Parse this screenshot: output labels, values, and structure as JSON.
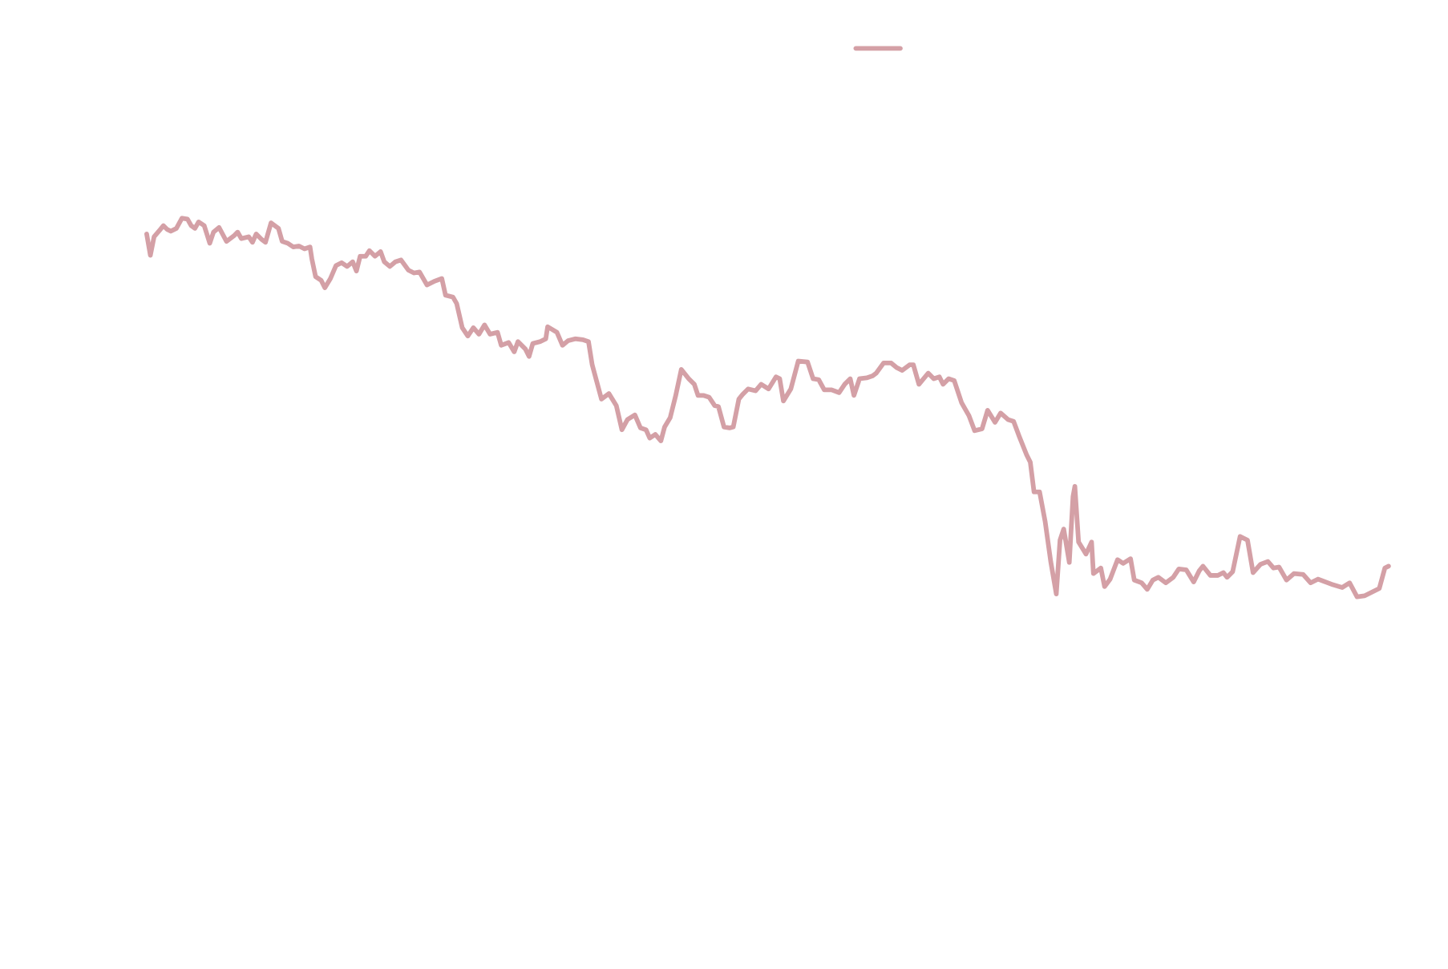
{
  "chart_data": {
    "type": "line",
    "xlim": [
      0,
      1338
    ],
    "ylim": [
      0,
      100
    ],
    "x": [
      0,
      4,
      8,
      14,
      18,
      22,
      26,
      32,
      38,
      44,
      48,
      52,
      56,
      62,
      68,
      72,
      78,
      86,
      94,
      98,
      102,
      110,
      114,
      118,
      124,
      128,
      134,
      142,
      146,
      152,
      158,
      164,
      170,
      176,
      178,
      182,
      188,
      192,
      198,
      204,
      210,
      216,
      222,
      226,
      230,
      236,
      240,
      246,
      252,
      256,
      262,
      268,
      274,
      282,
      288,
      294,
      302,
      310,
      318,
      322,
      330,
      334,
      340,
      346,
      352,
      358,
      364,
      370,
      378,
      382,
      390,
      396,
      400,
      408,
      412,
      416,
      424,
      430,
      432,
      442,
      448,
      454,
      462,
      470,
      476,
      480,
      490,
      498,
      506,
      512,
      518,
      526,
      532,
      538,
      542,
      548,
      554,
      558,
      564,
      570,
      576,
      584,
      590,
      594,
      600,
      606,
      612,
      616,
      622,
      628,
      632,
      638,
      642,
      648,
      656,
      662,
      670,
      678,
      682,
      686,
      694,
      702,
      712,
      718,
      724,
      730,
      738,
      746,
      752,
      758,
      762,
      768,
      776,
      782,
      786,
      794,
      802,
      808,
      814,
      822,
      826,
      832,
      842,
      848,
      854,
      858,
      864,
      870,
      878,
      886,
      892,
      900,
      906,
      914,
      920,
      928,
      934,
      940,
      948,
      952,
      956,
      962,
      968,
      974,
      980,
      984,
      988,
      994,
      998,
      1000,
      1004,
      1012,
      1018,
      1020,
      1028,
      1032,
      1038,
      1046,
      1052,
      1060,
      1064,
      1072,
      1078,
      1084,
      1090,
      1098,
      1106,
      1112,
      1120,
      1128,
      1134,
      1138,
      1146,
      1154,
      1160,
      1164,
      1170,
      1178,
      1186,
      1192,
      1200,
      1208,
      1214,
      1220,
      1228,
      1236,
      1246,
      1254,
      1262,
      1270,
      1278,
      1288,
      1296,
      1304,
      1312,
      1320,
      1328,
      1334,
      1338
    ],
    "series": [
      {
        "color": "#d4a0a6",
        "values": [
          74.8,
          72.5,
          74.5,
          75.2,
          75.7,
          75.3,
          75.1,
          75.4,
          76.5,
          76.4,
          75.7,
          75.4,
          76.1,
          75.7,
          73.8,
          75,
          75.5,
          74,
          74.6,
          75,
          74.3,
          74.5,
          73.9,
          74.8,
          74.2,
          73.9,
          76,
          75.4,
          74,
          73.8,
          73.4,
          73.5,
          73.2,
          73.4,
          72.1,
          70.2,
          69.8,
          69,
          70,
          71.4,
          71.7,
          71.3,
          71.8,
          70.8,
          72.4,
          72.4,
          73,
          72.4,
          72.9,
          71.8,
          71.3,
          71.8,
          72,
          70.9,
          70.6,
          70.7,
          69.3,
          69.7,
          70,
          68.2,
          68,
          67.3,
          64.7,
          63.8,
          64.7,
          64,
          65,
          64,
          64.2,
          62.8,
          63.1,
          62.1,
          63.2,
          62.4,
          61.6,
          63,
          63.2,
          63.5,
          64.8,
          64.2,
          62.8,
          63.3,
          63.5,
          63.4,
          63.2,
          60.7,
          57,
          57.6,
          56.3,
          53.7,
          54.8,
          55.3,
          53.9,
          53.7,
          52.8,
          53.2,
          52.5,
          54,
          55,
          57.4,
          60.2,
          59.2,
          58.6,
          57.4,
          57.4,
          57.2,
          56.3,
          56.2,
          54,
          53.9,
          54,
          57,
          57.5,
          58.1,
          57.9,
          58.6,
          58.1,
          59.4,
          59.2,
          56.8,
          58.1,
          61.1,
          61,
          59.2,
          59.1,
          58,
          58,
          57.7,
          58.6,
          59.2,
          57.4,
          59.2,
          59.3,
          59.5,
          59.8,
          60.9,
          60.9,
          60.4,
          60.1,
          60.7,
          60.7,
          58.6,
          59.8,
          59.2,
          59.4,
          58.6,
          59.2,
          59,
          56.6,
          55.2,
          53.6,
          53.8,
          55.8,
          54.5,
          55.5,
          54.8,
          54.6,
          53,
          51,
          50.2,
          47,
          47,
          43.8,
          39.5,
          36,
          41.8,
          43,
          39.4,
          46.5,
          47.6,
          41.6,
          40.3,
          41.6,
          38.2,
          38.8,
          36.8,
          37.6,
          39.7,
          39.3,
          39.8,
          37.5,
          37.2,
          36.5,
          37.5,
          37.8,
          37.2,
          37.8,
          38.7,
          38.6,
          37.3,
          38.5,
          39,
          38,
          38,
          38.3,
          37.8,
          38.4,
          42.2,
          41.8,
          38.3,
          39.2,
          39.5,
          38.8,
          38.9,
          37.5,
          38.2,
          38.1,
          37.2,
          37.6,
          37.3,
          37,
          36.7,
          37.2,
          35.7,
          35.8,
          36.2,
          36.6,
          38.8,
          39
        ]
      }
    ]
  }
}
